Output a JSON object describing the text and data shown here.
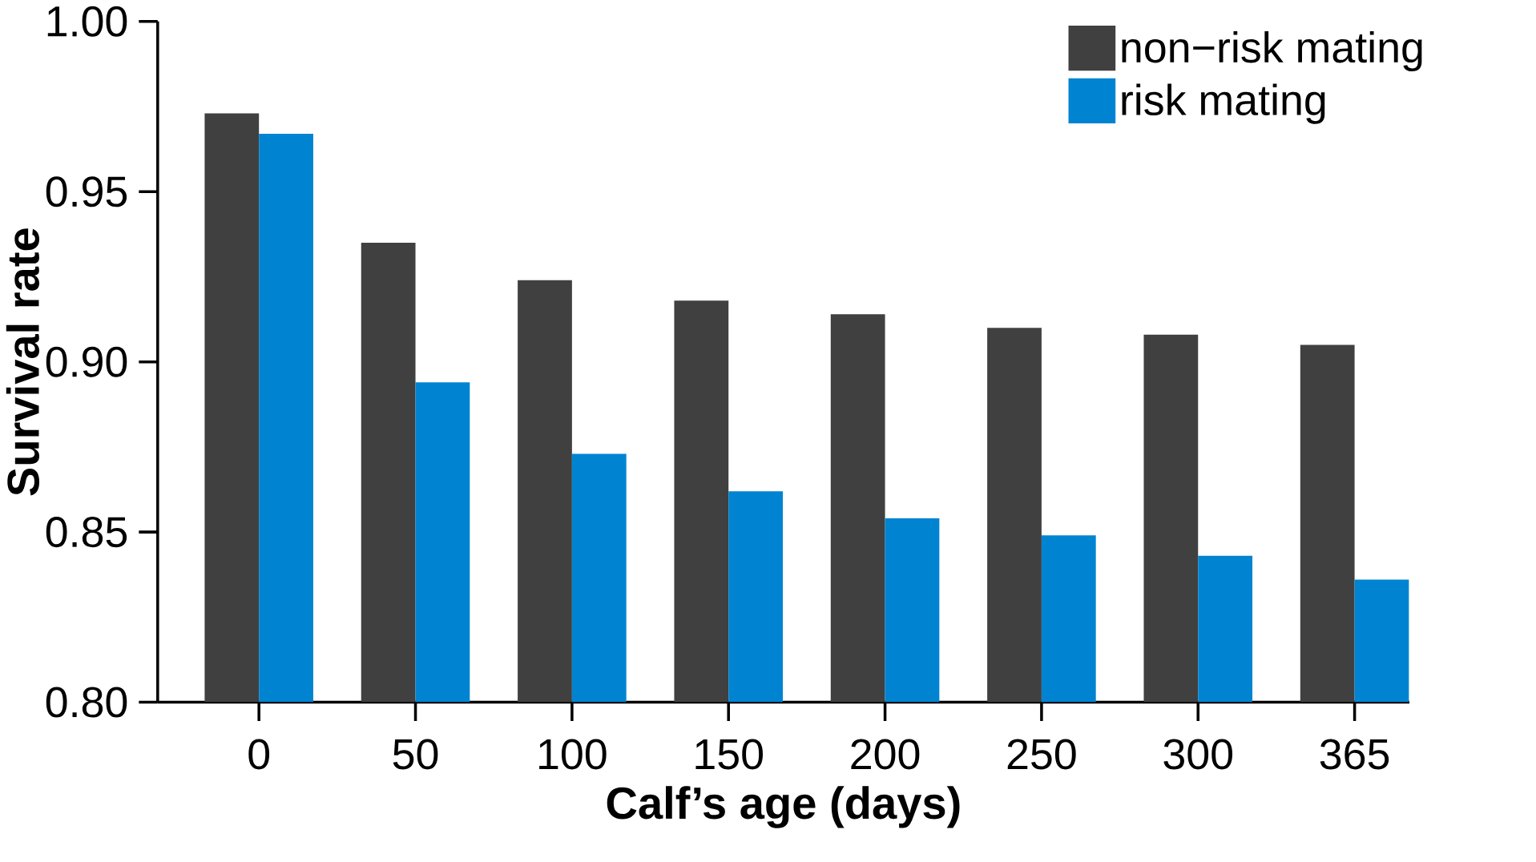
{
  "chart_data": {
    "type": "bar",
    "xlabel": "Calf’s age (days)",
    "ylabel": "Survival rate",
    "categories": [
      "0",
      "50",
      "100",
      "150",
      "200",
      "250",
      "300",
      "365"
    ],
    "series": [
      {
        "name": "non−risk mating",
        "color": "#404040",
        "values": [
          0.973,
          0.935,
          0.924,
          0.918,
          0.914,
          0.91,
          0.908,
          0.905
        ]
      },
      {
        "name": "risk mating",
        "color": "#0084d1",
        "values": [
          0.967,
          0.894,
          0.873,
          0.862,
          0.854,
          0.849,
          0.843,
          0.836
        ]
      }
    ],
    "ylim": [
      0.8,
      1.0
    ],
    "yticks": [
      {
        "value": 0.8,
        "label": "0.80"
      },
      {
        "value": 0.85,
        "label": "0.85"
      },
      {
        "value": 0.9,
        "label": "0.90"
      },
      {
        "value": 0.95,
        "label": "0.95"
      },
      {
        "value": 1.0,
        "label": "1.00"
      }
    ],
    "grid": false,
    "legend": "top right"
  }
}
